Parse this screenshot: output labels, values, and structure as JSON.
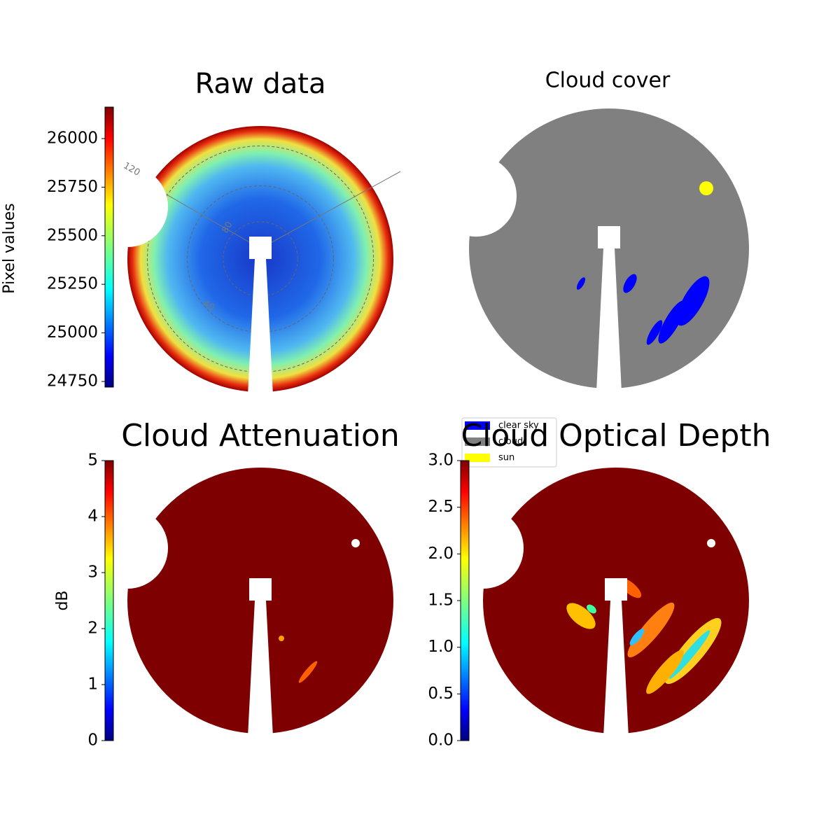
{
  "chart_data": [
    {
      "type": "image",
      "title": "Raw data",
      "colorbar_label": "Pixel values",
      "colormap": "jet",
      "ylim": [
        24721,
        26162
      ],
      "yticks": [
        24750,
        25000,
        25250,
        25500,
        25750,
        26000
      ],
      "annotations": [
        "120",
        "80",
        "40"
      ]
    },
    {
      "type": "image",
      "title": "Cloud cover",
      "series": [
        {
          "name": "clear sky",
          "color": "#0000ff"
        },
        {
          "name": "cloud",
          "color": "#808080"
        },
        {
          "name": "sun",
          "color": "#ffff00"
        }
      ]
    },
    {
      "type": "image",
      "title": "Cloud Attenuation",
      "colorbar_label": "dB",
      "colormap": "jet",
      "ylim": [
        0,
        5
      ],
      "yticks": [
        0,
        1,
        2,
        3,
        4,
        5
      ]
    },
    {
      "type": "image",
      "title": "Cloud Optical Depth",
      "colormap": "jet",
      "ylim": [
        0,
        3
      ],
      "yticks": [
        {
          "value": 0,
          "label": "0.0"
        },
        {
          "value": 0.5,
          "label": "0.5"
        },
        {
          "value": 1,
          "label": "1.0"
        },
        {
          "value": 1.5,
          "label": "1.5"
        },
        {
          "value": 2,
          "label": "2.0"
        },
        {
          "value": 2.5,
          "label": "2.5"
        },
        {
          "value": 3,
          "label": "3.0"
        }
      ]
    }
  ]
}
